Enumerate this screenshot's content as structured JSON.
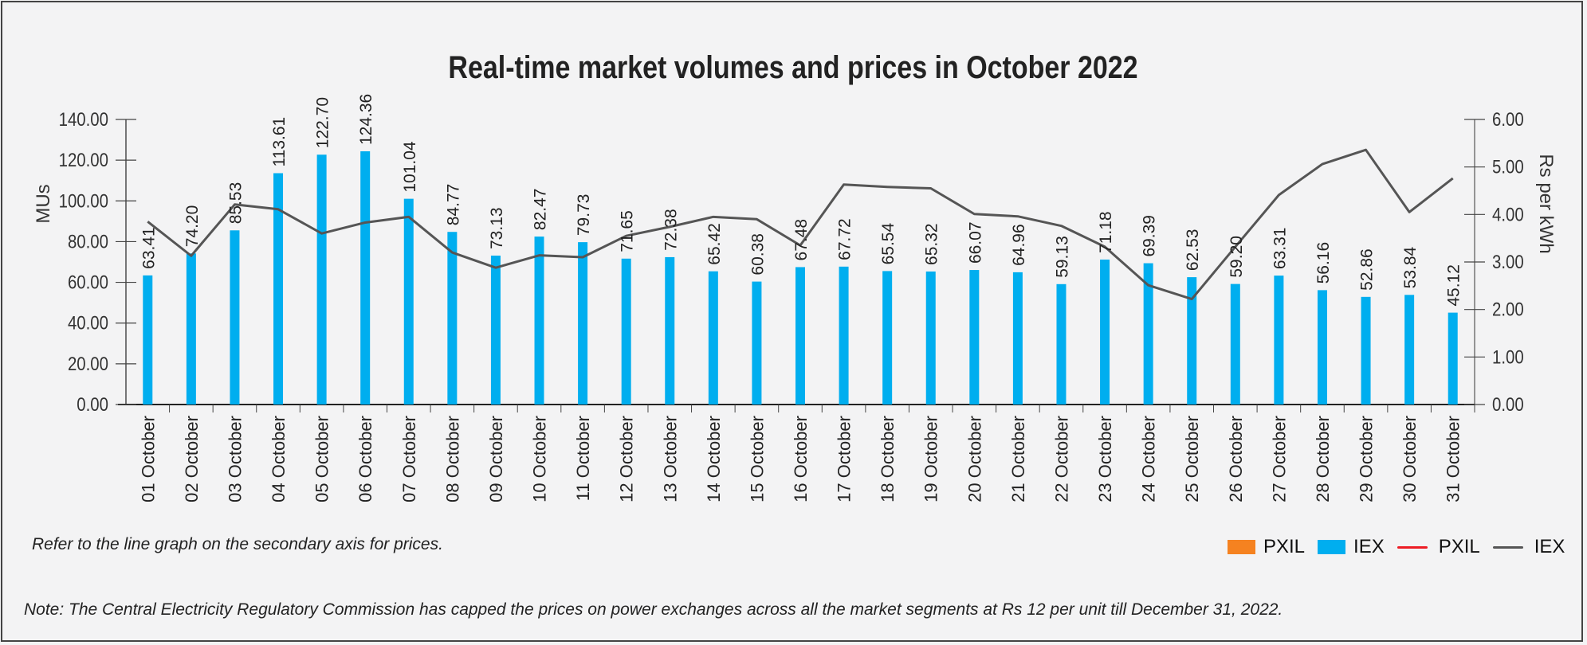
{
  "chart_data": {
    "type": "bar+line",
    "title": "Real-time market volumes and prices in October 2022",
    "ylabel": "MUs",
    "y2label": "Rs per kWh",
    "ylim": [
      0,
      140
    ],
    "y2lim": [
      0,
      6
    ],
    "yticks": [
      "0.00",
      "20.00",
      "40.00",
      "60.00",
      "80.00",
      "100.00",
      "120.00",
      "140.00"
    ],
    "y2ticks": [
      "0.00",
      "1.00",
      "2.00",
      "3.00",
      "4.00",
      "5.00",
      "6.00"
    ],
    "categories": [
      "01 October",
      "02 October",
      "03 October",
      "04 October",
      "05 October",
      "06 October",
      "07 October",
      "08 October",
      "09 October",
      "10 October",
      "11 October",
      "12 October",
      "13 October",
      "14 October",
      "15 October",
      "16 October",
      "17 October",
      "18 October",
      "19 October",
      "20 October",
      "21 October",
      "22 October",
      "23 October",
      "24 October",
      "25 October",
      "26 October",
      "27 October",
      "28 October",
      "29 October",
      "30 October",
      "31 October"
    ],
    "series": [
      {
        "name": "IEX",
        "kind": "bar",
        "axis": "primary",
        "color": "#00aeef",
        "values": [
          63.41,
          74.2,
          85.53,
          113.61,
          122.7,
          124.36,
          101.04,
          84.77,
          73.13,
          82.47,
          79.73,
          71.65,
          72.38,
          65.42,
          60.38,
          67.48,
          67.72,
          65.54,
          65.32,
          66.07,
          64.96,
          59.13,
          71.18,
          69.39,
          62.53,
          59.2,
          63.31,
          56.16,
          52.86,
          53.84,
          45.12
        ],
        "labels": [
          "63.41",
          "74.20",
          "85.53",
          "113.61",
          "122.70",
          "124.36",
          "101.04",
          "84.77",
          "73.13",
          "82.47",
          "79.73",
          "71.65",
          "72.38",
          "65.42",
          "60.38",
          "67.48",
          "67.72",
          "65.54",
          "65.32",
          "66.07",
          "64.96",
          "59.13",
          "71.18",
          "69.39",
          "62.53",
          "59.20",
          "63.31",
          "56.16",
          "52.86",
          "53.84",
          "45.12"
        ]
      },
      {
        "name": "IEX",
        "kind": "line",
        "axis": "secondary",
        "color": "#555555",
        "values": [
          3.85,
          3.13,
          4.21,
          4.11,
          3.6,
          3.83,
          3.95,
          3.2,
          2.88,
          3.14,
          3.1,
          3.55,
          3.74,
          3.95,
          3.9,
          3.35,
          4.63,
          4.58,
          4.55,
          4.01,
          3.96,
          3.76,
          3.32,
          2.51,
          2.22,
          3.32,
          4.41,
          5.06,
          5.36,
          4.05,
          4.76
        ]
      }
    ],
    "legend": [
      {
        "label": "PXIL",
        "kind": "bar",
        "color": "#f58220"
      },
      {
        "label": "IEX",
        "kind": "bar",
        "color": "#00aeef"
      },
      {
        "label": "PXIL",
        "kind": "line",
        "color": "#ed1c24"
      },
      {
        "label": "IEX",
        "kind": "line",
        "color": "#555555"
      }
    ],
    "legend_position": "bottom-right",
    "grid": false
  },
  "notes": {
    "secondary_axis": "Refer to the line graph on the secondary axis for prices.",
    "footnote": "Note: The Central Electricity Regulatory Commission has capped the prices on power exchanges across all the market segments at Rs 12 per unit till December 31, 2022."
  }
}
